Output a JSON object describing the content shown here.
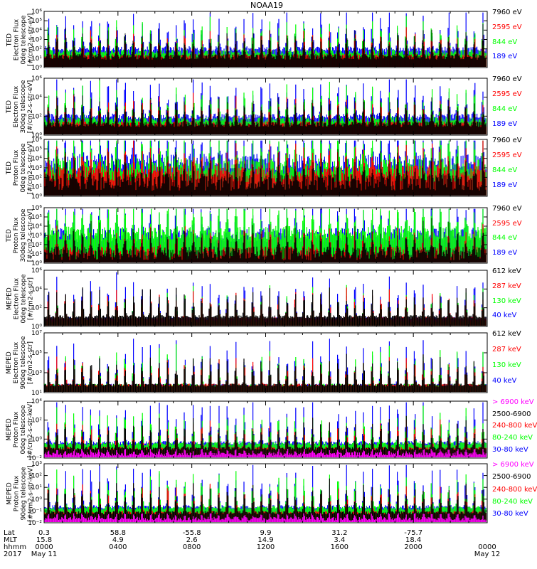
{
  "title": "NOAA19",
  "colors": {
    "black": "#000000",
    "red": "#ff0000",
    "green": "#00ff00",
    "blue": "#0000ff",
    "magenta": "#ff00ff"
  },
  "chart_data": [
    {
      "type": "line",
      "panel_label": [
        "TED",
        "Electron Flux",
        "0deg telescope",
        "[#/cm2-s-str-eV]"
      ],
      "y_scale": "log",
      "ylim": [
        1,
        1000000
      ],
      "y_ticks": [
        "10⁰",
        "10¹",
        "10²",
        "10³",
        "10⁴",
        "10⁵",
        "10⁶"
      ],
      "series": [
        {
          "name": "7960 eV",
          "color": "black"
        },
        {
          "name": "2595 eV",
          "color": "red"
        },
        {
          "name": "844 eV",
          "color": "green"
        },
        {
          "name": "189 eV",
          "color": "blue"
        }
      ]
    },
    {
      "type": "line",
      "panel_label": [
        "TED",
        "Electron Flux",
        "30deg telescope",
        "[#/cm2-s-str-eV]"
      ],
      "y_scale": "log",
      "ylim": [
        1,
        1000000
      ],
      "y_ticks": [
        "10⁰",
        "10²",
        "10⁴",
        "10⁶"
      ],
      "series": [
        {
          "name": "7960 eV",
          "color": "black"
        },
        {
          "name": "2595 eV",
          "color": "red"
        },
        {
          "name": "844 eV",
          "color": "green"
        },
        {
          "name": "189 eV",
          "color": "blue"
        }
      ]
    },
    {
      "type": "line",
      "panel_label": [
        "TED",
        "Proton Flux",
        "0deg telescope",
        "[#/cm2-s-str-eV]"
      ],
      "y_scale": "log",
      "ylim": [
        1,
        1000000
      ],
      "y_ticks": [
        "10⁰",
        "10¹",
        "10²",
        "10³",
        "10⁴",
        "10⁵",
        "10⁶"
      ],
      "series": [
        {
          "name": "7960 eV",
          "color": "black"
        },
        {
          "name": "2595 eV",
          "color": "red"
        },
        {
          "name": "844 eV",
          "color": "green"
        },
        {
          "name": "189 eV",
          "color": "blue"
        }
      ]
    },
    {
      "type": "line",
      "panel_label": [
        "TED",
        "Proton Flux",
        "30deg telescope",
        "[#/cm2-s-str-eV]"
      ],
      "y_scale": "log",
      "ylim": [
        1,
        1000000
      ],
      "y_ticks": [
        "10⁰",
        "10¹",
        "10²",
        "10³",
        "10⁴",
        "10⁵",
        "10⁶"
      ],
      "series": [
        {
          "name": "7960 eV",
          "color": "black"
        },
        {
          "name": "2595 eV",
          "color": "red"
        },
        {
          "name": "844 eV",
          "color": "green"
        },
        {
          "name": "189 eV",
          "color": "blue"
        }
      ]
    },
    {
      "type": "line",
      "panel_label": [
        "MEPED",
        "Electron Flux",
        "0deg telescope",
        "[#/cm2-s-str]"
      ],
      "y_scale": "log",
      "ylim": [
        1,
        1000000
      ],
      "y_ticks": [
        "10⁰",
        "10²",
        "10⁴",
        "10⁶"
      ],
      "series": [
        {
          "name": "612 keV",
          "color": "black"
        },
        {
          "name": "287 keV",
          "color": "red"
        },
        {
          "name": "130 keV",
          "color": "green"
        },
        {
          "name": "40 keV",
          "color": "blue"
        }
      ]
    },
    {
      "type": "line",
      "panel_label": [
        "MEPED",
        "Electron Flux",
        "90deg telescope",
        "[#/cm2-s-str]"
      ],
      "y_scale": "log",
      "ylim": [
        10,
        10000000
      ],
      "y_ticks": [
        "10¹",
        "10³",
        "10⁵",
        "10⁷"
      ],
      "series": [
        {
          "name": "612 keV",
          "color": "black"
        },
        {
          "name": "287 keV",
          "color": "red"
        },
        {
          "name": "130 keV",
          "color": "green"
        },
        {
          "name": "40 keV",
          "color": "blue"
        }
      ]
    },
    {
      "type": "line",
      "panel_label": [
        "MEPED",
        "Proton Flux",
        "0deg telescope",
        "[#/cm2-s-str-keV]"
      ],
      "y_scale": "log",
      "ylim": [
        0.01,
        10000
      ],
      "y_ticks": [
        "10⁻²",
        "10⁰",
        "10²",
        "10⁴"
      ],
      "series": [
        {
          "name": "> 6900 keV",
          "color": "magenta"
        },
        {
          "name": "2500-6900",
          "color": "black"
        },
        {
          "name": "240-800 keV",
          "color": "red"
        },
        {
          "name": "80-240 keV",
          "color": "green"
        },
        {
          "name": "30-80 keV",
          "color": "blue"
        }
      ]
    },
    {
      "type": "line",
      "panel_label": [
        "MEPED",
        "Proton Flux",
        "90deg telescope",
        "[#/cm2-s-str-keV]"
      ],
      "y_scale": "log",
      "ylim": [
        0.01,
        1000
      ],
      "y_ticks": [
        "10⁻²",
        "10⁻¹",
        "10⁰",
        "10¹",
        "10²",
        "10³"
      ],
      "series": [
        {
          "name": "> 6900 keV",
          "color": "magenta"
        },
        {
          "name": "2500-6900",
          "color": "black"
        },
        {
          "name": "240-800 keV",
          "color": "red"
        },
        {
          "name": "80-240 keV",
          "color": "green"
        },
        {
          "name": "30-80 keV",
          "color": "blue"
        }
      ]
    }
  ],
  "x_axis": {
    "row_labels": [
      "Lat",
      "MLT",
      "hhmm",
      "2017"
    ],
    "columns": [
      {
        "lat": "0.3",
        "mlt": "15.8",
        "hhmm": "0000",
        "date": "May 11"
      },
      {
        "lat": "58.8",
        "mlt": "4.9",
        "hhmm": "0400",
        "date": ""
      },
      {
        "lat": "-55.8",
        "mlt": "2.6",
        "hhmm": "0800",
        "date": ""
      },
      {
        "lat": "9.9",
        "mlt": "14.9",
        "hhmm": "1200",
        "date": ""
      },
      {
        "lat": "31.2",
        "mlt": "3.4",
        "hhmm": "1600",
        "date": ""
      },
      {
        "lat": "-75.7",
        "mlt": "18.4",
        "hhmm": "2000",
        "date": ""
      },
      {
        "lat": "",
        "mlt": "",
        "hhmm": "0000",
        "date": "May 12"
      }
    ]
  }
}
